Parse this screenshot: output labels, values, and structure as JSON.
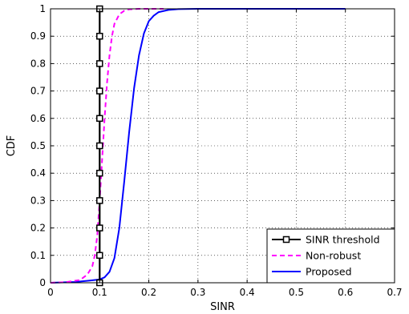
{
  "chart_data": {
    "type": "line",
    "title": "",
    "xlabel": "SINR",
    "ylabel": "CDF",
    "xlim": [
      0,
      0.7
    ],
    "ylim": [
      0,
      1
    ],
    "xticks": [
      "0",
      "0.1",
      "0.2",
      "0.3",
      "0.4",
      "0.5",
      "0.6",
      "0.7"
    ],
    "yticks": [
      "0",
      "0.1",
      "0.2",
      "0.3",
      "0.4",
      "0.5",
      "0.6",
      "0.7",
      "0.8",
      "0.9",
      "1"
    ],
    "grid": true,
    "legend_position": "bottom-right",
    "series": [
      {
        "name": "SINR threshold",
        "color": "#000000",
        "style": "solid",
        "marker": "square",
        "x": [
          0.1,
          0.1,
          0.1,
          0.1,
          0.1,
          0.1,
          0.1,
          0.1,
          0.1,
          0.1,
          0.1
        ],
        "y": [
          0,
          0.1,
          0.2,
          0.3,
          0.4,
          0.5,
          0.6,
          0.7,
          0.8,
          0.9,
          1.0
        ]
      },
      {
        "name": "Non-robust",
        "color": "#ff00ff",
        "style": "dashed",
        "marker": "none",
        "x": [
          0,
          0.03,
          0.06,
          0.075,
          0.085,
          0.09,
          0.095,
          0.1,
          0.105,
          0.11,
          0.115,
          0.12,
          0.125,
          0.13,
          0.14,
          0.15,
          0.16,
          0.18,
          0.2,
          0.23
        ],
        "y": [
          0,
          0.002,
          0.01,
          0.03,
          0.06,
          0.1,
          0.17,
          0.3,
          0.45,
          0.6,
          0.73,
          0.83,
          0.9,
          0.945,
          0.98,
          0.993,
          0.998,
          1.0,
          1.0,
          1.0
        ]
      },
      {
        "name": "Proposed",
        "color": "#0000ff",
        "style": "solid",
        "marker": "none",
        "x": [
          0,
          0.05,
          0.08,
          0.1,
          0.11,
          0.12,
          0.13,
          0.14,
          0.15,
          0.16,
          0.17,
          0.18,
          0.19,
          0.2,
          0.21,
          0.22,
          0.24,
          0.26,
          0.3,
          0.4,
          0.5,
          0.6
        ],
        "y": [
          0,
          0.003,
          0.008,
          0.012,
          0.02,
          0.04,
          0.09,
          0.2,
          0.37,
          0.55,
          0.71,
          0.83,
          0.91,
          0.955,
          0.975,
          0.988,
          0.996,
          0.999,
          1.0,
          1.0,
          1.0,
          1.0
        ]
      }
    ]
  }
}
